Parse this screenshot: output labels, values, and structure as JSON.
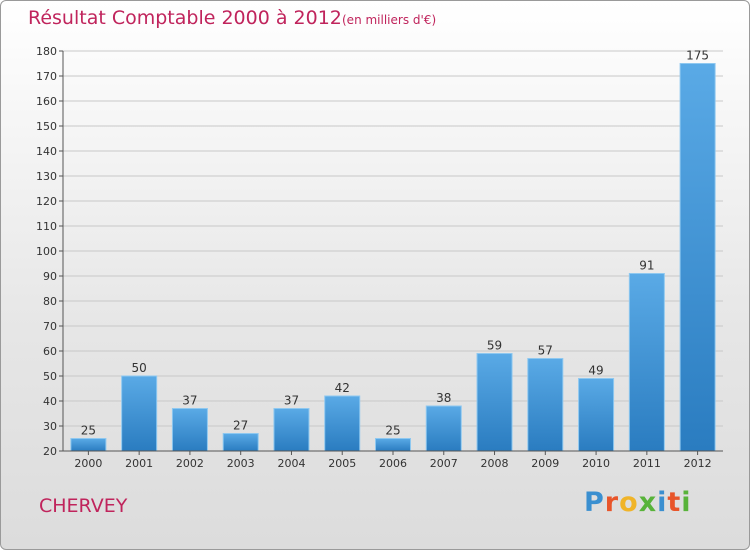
{
  "title": "Résultat Comptable 2000 à 2012",
  "subtitle": "(en milliers d'€)",
  "commune": "CHERVEY",
  "logo": "Proxiti",
  "colors": {
    "title": "#c0245c",
    "bar_light": "#5aaae6",
    "bar_dark": "#2a7cc0"
  },
  "chart_data": {
    "type": "bar",
    "title": "Résultat Comptable 2000 à 2012",
    "subtitle": "(en milliers d'€)",
    "xlabel": "",
    "ylabel": "",
    "categories": [
      "2000",
      "2001",
      "2002",
      "2003",
      "2004",
      "2005",
      "2006",
      "2007",
      "2008",
      "2009",
      "2010",
      "2011",
      "2012"
    ],
    "values": [
      25,
      50,
      37,
      27,
      37,
      42,
      25,
      38,
      59,
      57,
      49,
      91,
      175
    ],
    "ylim": [
      20,
      180
    ],
    "yticks": [
      20,
      30,
      40,
      50,
      60,
      70,
      80,
      90,
      100,
      110,
      120,
      130,
      140,
      150,
      160,
      170,
      180
    ],
    "grid": true
  }
}
